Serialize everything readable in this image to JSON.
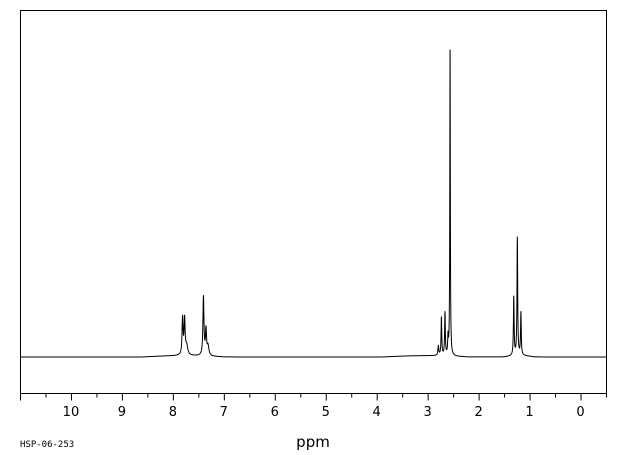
{
  "chart_data": {
    "type": "line",
    "title": "",
    "xlabel": "ppm",
    "ylabel": "",
    "xlim": [
      11.0,
      -0.5
    ],
    "x_reversed": true,
    "ylim": [
      0,
      100
    ],
    "grid": false,
    "x_major_ticks": [
      10,
      9,
      8,
      7,
      6,
      5,
      4,
      3,
      2,
      1,
      0
    ],
    "x_tick_labels": [
      "10",
      "9",
      "8",
      "7",
      "6",
      "5",
      "4",
      "3",
      "2",
      "1",
      "0"
    ],
    "x_minor_step": 0.5,
    "series": [
      {
        "peaks": [
          {
            "ppm": 7.81,
            "height": 11.5,
            "width": 0.012
          },
          {
            "ppm": 7.77,
            "height": 11.0,
            "width": 0.012
          },
          {
            "ppm": 7.73,
            "height": 3.0,
            "width": 0.025
          },
          {
            "ppm": 7.4,
            "height": 18.5,
            "width": 0.012
          },
          {
            "ppm": 7.35,
            "height": 8.0,
            "width": 0.012
          },
          {
            "ppm": 7.31,
            "height": 3.0,
            "width": 0.02
          },
          {
            "ppm": 2.79,
            "height": 3.0,
            "width": 0.01
          },
          {
            "ppm": 2.73,
            "height": 12.0,
            "width": 0.008
          },
          {
            "ppm": 2.66,
            "height": 13.5,
            "width": 0.008
          },
          {
            "ppm": 2.6,
            "height": 5.5,
            "width": 0.008
          },
          {
            "ppm": 2.56,
            "height": 98.0,
            "width": 0.006
          },
          {
            "ppm": 1.31,
            "height": 18.5,
            "width": 0.008
          },
          {
            "ppm": 1.24,
            "height": 37.0,
            "width": 0.008
          },
          {
            "ppm": 1.17,
            "height": 13.5,
            "width": 0.008
          }
        ],
        "baseline_bumps": [
          {
            "from": 8.6,
            "to": 7.0,
            "height": 0.4
          },
          {
            "from": 3.9,
            "to": 2.2,
            "height": 0.4
          },
          {
            "from": 1.5,
            "to": 0.9,
            "height": 0.4
          }
        ]
      }
    ]
  },
  "footer": {
    "spectrum_code": "HSP-06-253"
  }
}
